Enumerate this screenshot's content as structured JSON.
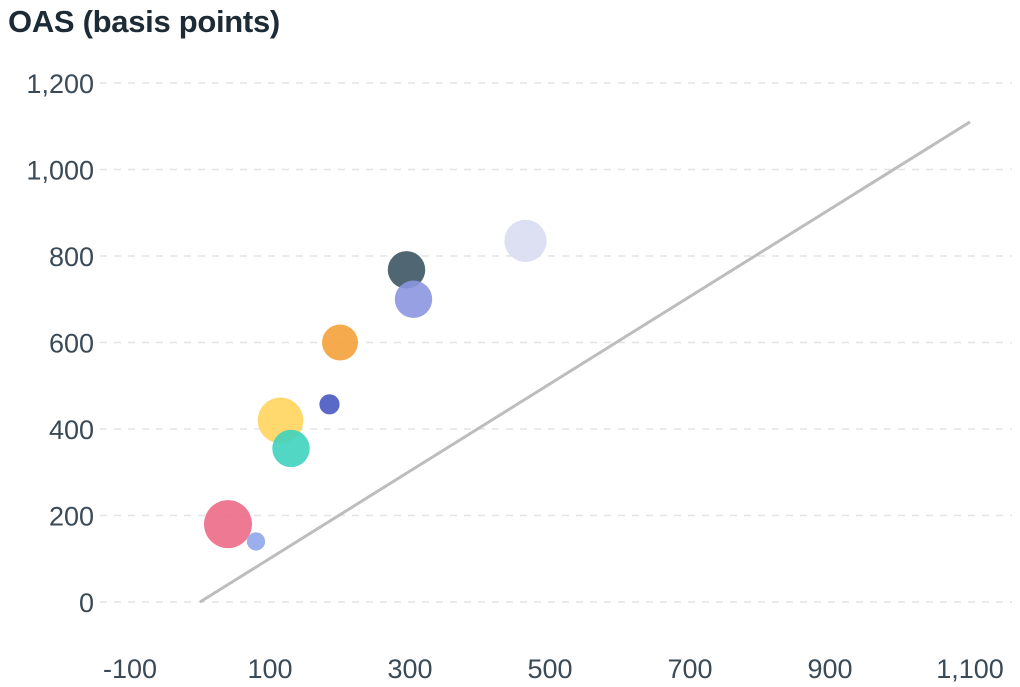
{
  "chart_data": {
    "type": "scatter",
    "title": "",
    "ylabel": "OAS (basis points)",
    "xlabel": "",
    "xlim": [
      -100,
      1100
    ],
    "ylim": [
      0,
      1200
    ],
    "x_ticks": [
      "-100",
      "100",
      "300",
      "500",
      "700",
      "900",
      "1,100"
    ],
    "x_tick_values": [
      -100,
      100,
      300,
      500,
      700,
      900,
      1100
    ],
    "y_ticks": [
      "0",
      "200",
      "400",
      "600",
      "800",
      "1,000",
      "1,200"
    ],
    "y_tick_values": [
      0,
      200,
      400,
      600,
      800,
      1000,
      1200
    ],
    "grid": "horizontal dashed",
    "reference_line": {
      "x": [
        0,
        1100
      ],
      "y": [
        0,
        1110
      ],
      "color": "#bdbdbd"
    },
    "points": [
      {
        "x": 40,
        "y": 180,
        "size": 1.0,
        "color": "#ec6a86"
      },
      {
        "x": 80,
        "y": 140,
        "size": 0.38,
        "color": "#8fa6ea"
      },
      {
        "x": 115,
        "y": 420,
        "size": 0.95,
        "color": "#ffd45e"
      },
      {
        "x": 130,
        "y": 355,
        "size": 0.78,
        "color": "#3fd3be"
      },
      {
        "x": 185,
        "y": 457,
        "size": 0.42,
        "color": "#4858c2"
      },
      {
        "x": 200,
        "y": 600,
        "size": 0.75,
        "color": "#f4a23a"
      },
      {
        "x": 295,
        "y": 768,
        "size": 0.78,
        "color": "#3d5564"
      },
      {
        "x": 305,
        "y": 700,
        "size": 0.78,
        "color": "#8b96e0"
      },
      {
        "x": 465,
        "y": 835,
        "size": 0.88,
        "color": "#d9dcf1"
      }
    ]
  }
}
